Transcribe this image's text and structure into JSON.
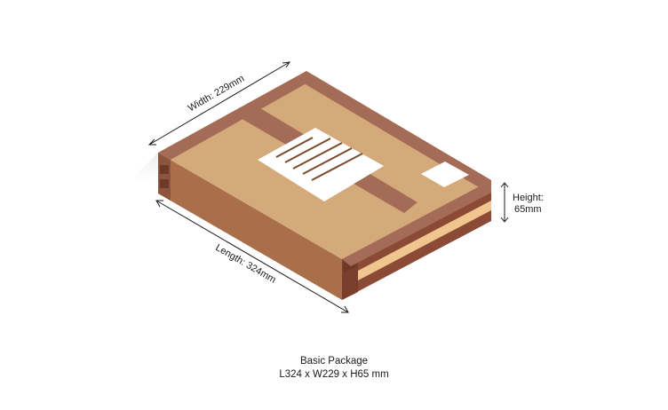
{
  "dimensions": {
    "width_label": "Width: 229mm",
    "length_label": "Length: 324mm",
    "height_label_line1": "Height:",
    "height_label_line2": "65mm"
  },
  "caption": {
    "title": "Basic Package",
    "dims": "L324 x W229 x H65 mm"
  },
  "colors": {
    "top_face": "#d5aa7b",
    "tape": "#a46c57",
    "left_face": "#a86f4a",
    "right_face": "#8a4a36",
    "edge_highlight": "#f0c58e",
    "label": "#ffffff",
    "label_lines": "#7a4a2c",
    "shadow": "#eeeeee"
  }
}
